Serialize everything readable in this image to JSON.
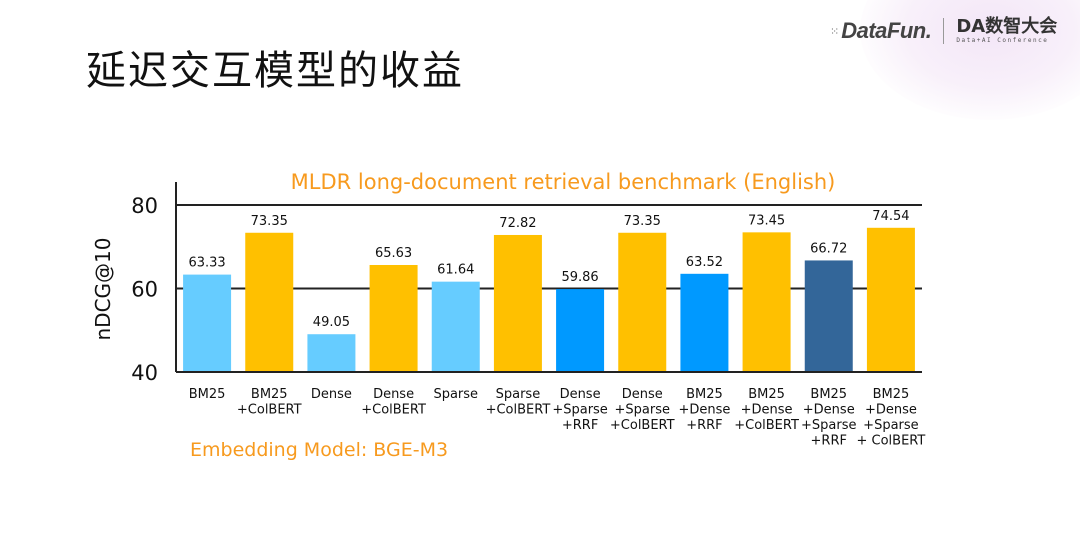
{
  "slide_title": "延迟交互模型的收益",
  "logo": {
    "brand": "DataFun.",
    "conference": "DA数智大会",
    "conference_sub": "Data+AI Conference"
  },
  "chart_data": {
    "type": "bar",
    "title": "MLDR long-document retrieval benchmark (English)",
    "ylabel": "nDCG@10",
    "xlabel": "",
    "ylim": [
      40,
      80
    ],
    "yticks": [
      40,
      60,
      80
    ],
    "grid": true,
    "footnote": "Embedding Model: BGE-M3",
    "categories": [
      [
        "BM25"
      ],
      [
        "BM25",
        "+ColBERT"
      ],
      [
        "Dense"
      ],
      [
        "Dense",
        "+ColBERT"
      ],
      [
        "Sparse"
      ],
      [
        "Sparse",
        "+ColBERT"
      ],
      [
        "Dense",
        "+Sparse",
        "+RRF"
      ],
      [
        "Dense",
        "+Sparse",
        "+ColBERT"
      ],
      [
        "BM25",
        "+Dense",
        "+RRF"
      ],
      [
        "BM25",
        "+Dense",
        "+ColBERT"
      ],
      [
        "BM25",
        "+Dense",
        "+Sparse",
        "+RRF"
      ],
      [
        "BM25",
        "+Dense",
        "+Sparse",
        "+ ColBERT"
      ]
    ],
    "values": [
      63.33,
      73.35,
      49.05,
      65.63,
      61.64,
      72.82,
      59.86,
      73.35,
      63.52,
      73.45,
      66.72,
      74.54
    ],
    "value_labels": [
      "63.33",
      "73.35",
      "49.05",
      "65.63",
      "61.64",
      "72.82",
      "59.86",
      "73.35",
      "63.52",
      "73.45",
      "66.72",
      "74.54"
    ],
    "bar_colors": [
      "#66CCFF",
      "#FFC000",
      "#66CCFF",
      "#FFC000",
      "#66CCFF",
      "#FFC000",
      "#0099FF",
      "#FFC000",
      "#0099FF",
      "#FFC000",
      "#336699",
      "#FFC000"
    ],
    "title_color": "#F79A1E",
    "footnote_color": "#F79A1E"
  }
}
